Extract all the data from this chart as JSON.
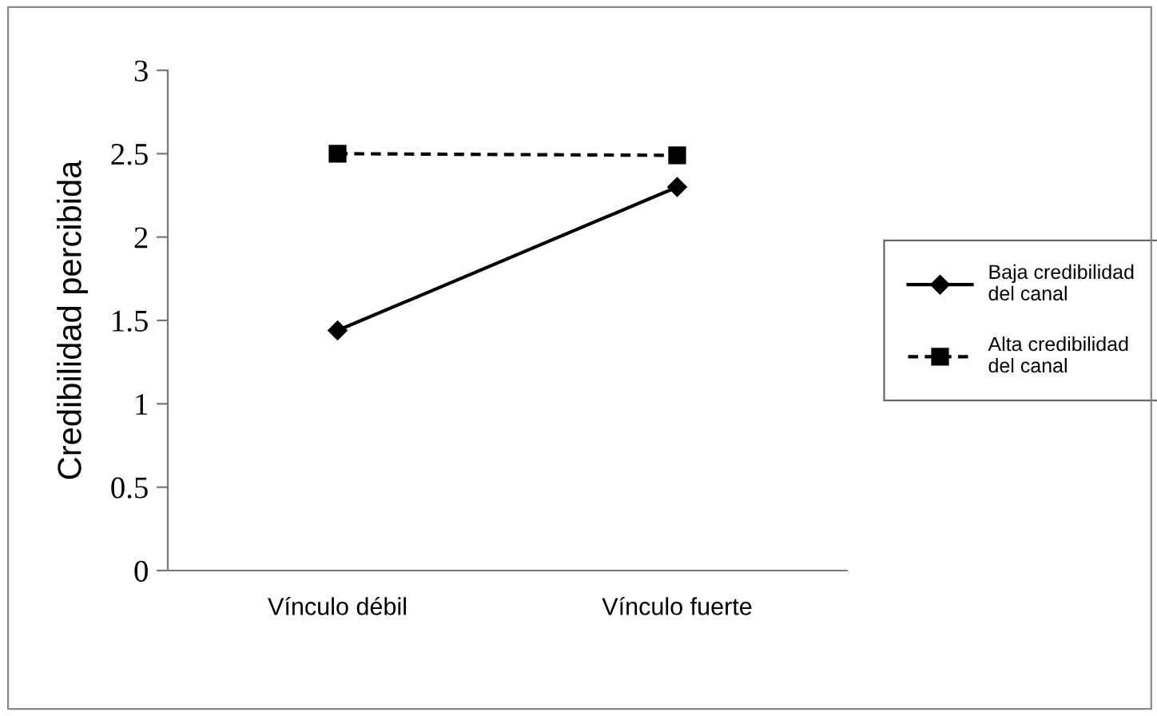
{
  "chart_data": {
    "type": "line",
    "ylabel": "Credibilidad percibida",
    "categories": [
      "Vínculo débil",
      "Vínculo fuerte"
    ],
    "ylim": [
      0,
      3
    ],
    "yticks": [
      0,
      0.5,
      1,
      1.5,
      2,
      2.5,
      3
    ],
    "grid": false,
    "legend": "right",
    "series": [
      {
        "name": "Baja credibilidad\ndel canal",
        "color": "#000000",
        "values": [
          1.44,
          2.3
        ],
        "marker": "diamond",
        "line_style": "solid"
      },
      {
        "name": "Alta credibilidad\ndel canal",
        "color": "#000000",
        "values": [
          2.5,
          2.49
        ],
        "marker": "square",
        "line_style": "dashed"
      }
    ]
  }
}
